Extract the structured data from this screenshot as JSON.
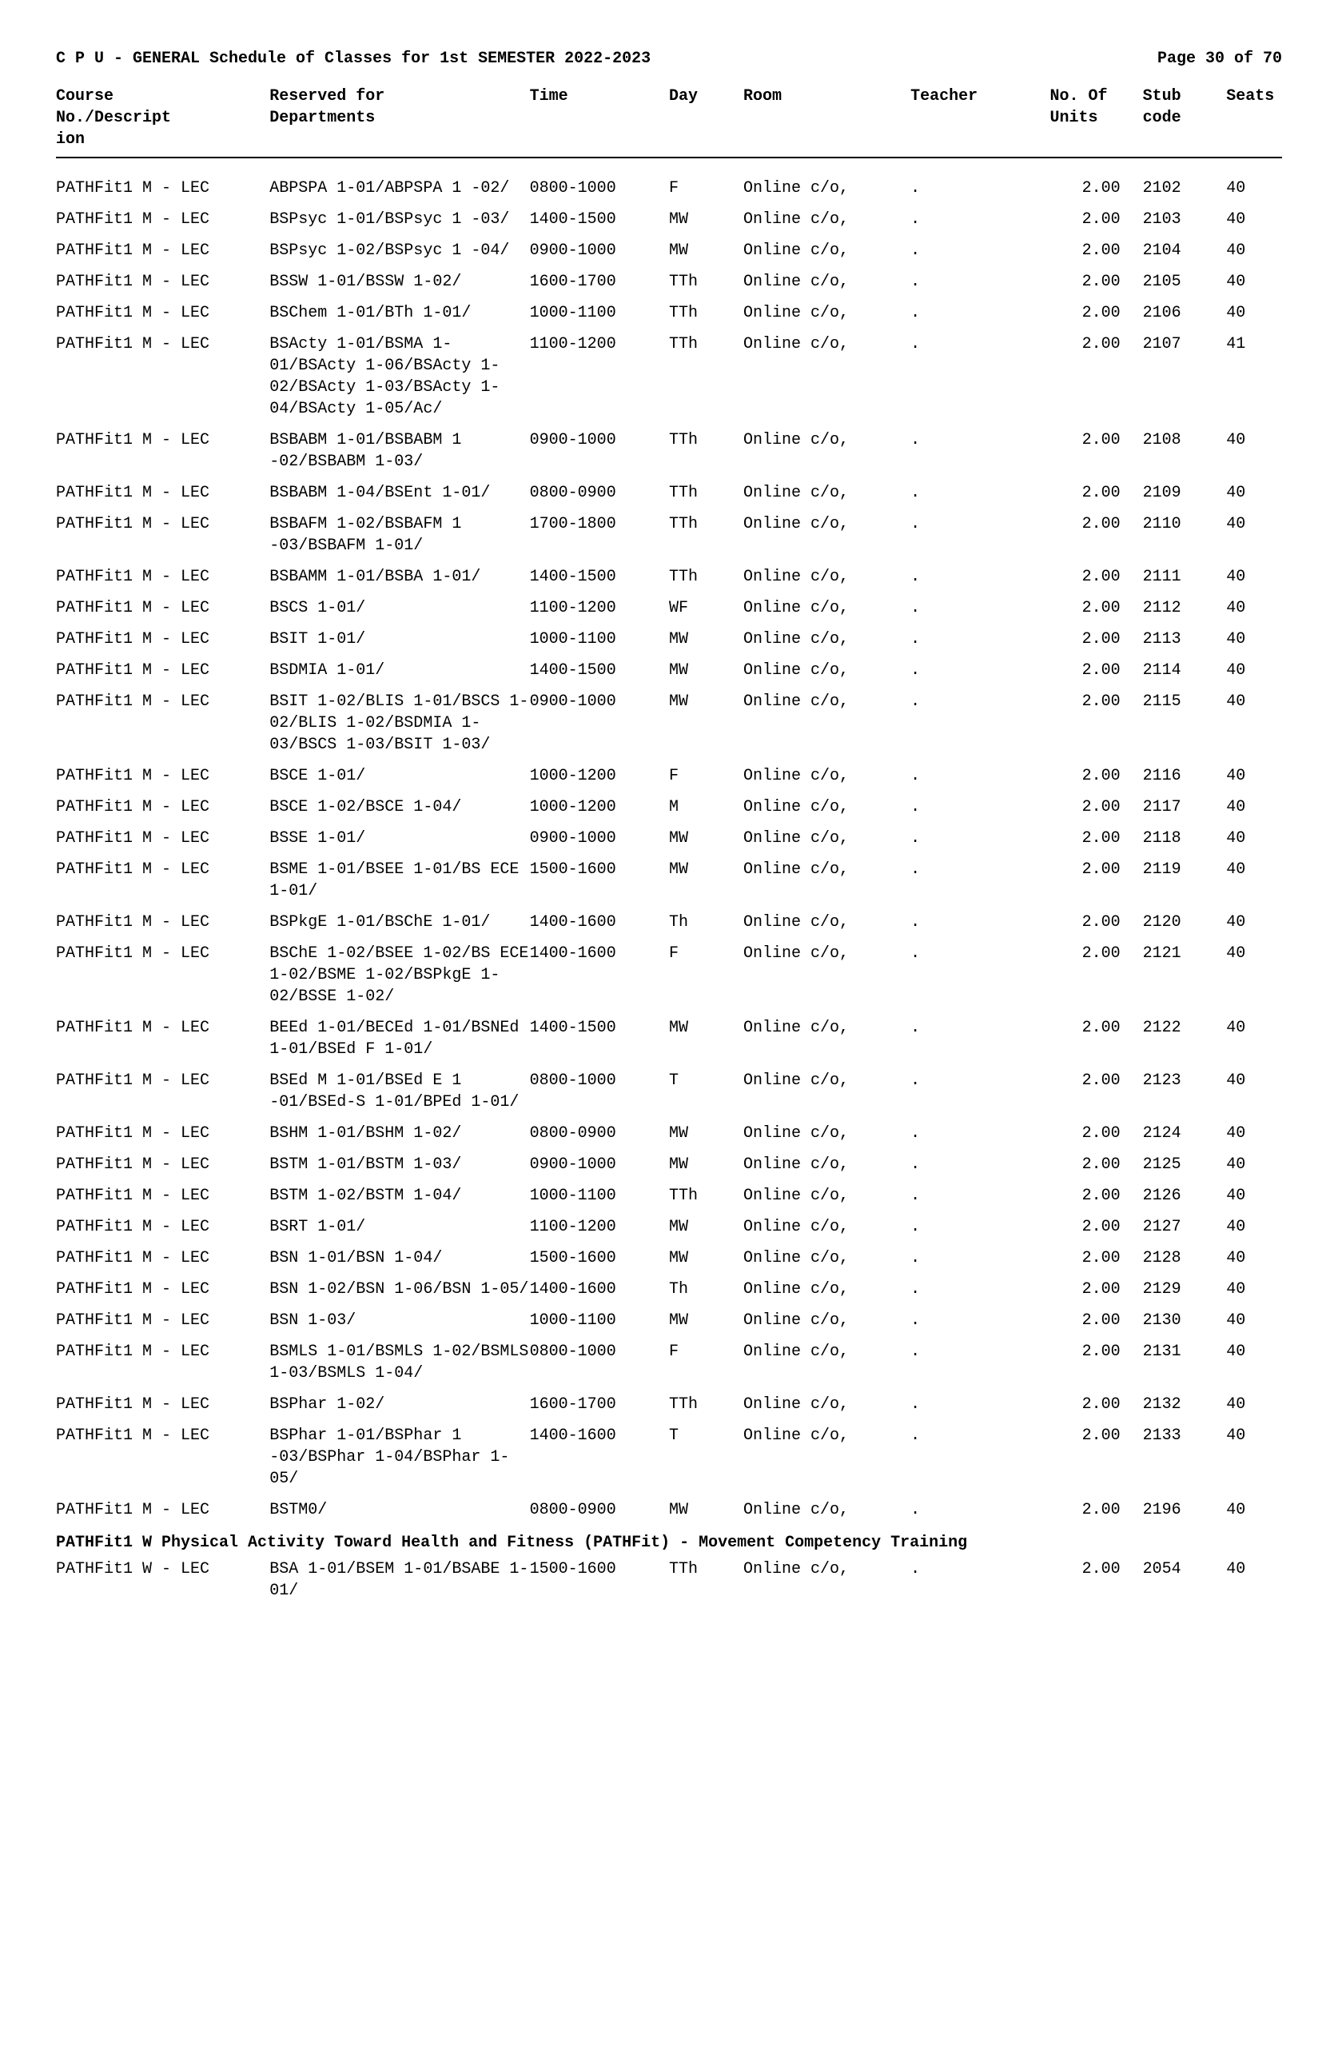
{
  "header": {
    "title": "C P U - GENERAL Schedule of Classes for 1st SEMESTER 2022-2023",
    "page": "Page 30 of 70"
  },
  "columns": {
    "course": "Course No./Descript ion",
    "reserved": "Reserved for Departments",
    "time": "Time",
    "day": "Day",
    "room": "Room",
    "teacher": "Teacher",
    "units": "No. Of Units",
    "stub": "Stub code",
    "seats": "Seats"
  },
  "rows": [
    {
      "course": "PATHFit1 M - LEC",
      "reserved": "ABPSPA 1-01/ABPSPA 1 -02/",
      "time": "0800-1000",
      "day": "F",
      "room": "Online c/o,",
      "teacher": ".",
      "units": "2.00",
      "stub": "2102",
      "seats": "40"
    },
    {
      "course": "PATHFit1 M - LEC",
      "reserved": "BSPsyc 1-01/BSPsyc 1 -03/",
      "time": "1400-1500",
      "day": "MW",
      "room": "Online c/o,",
      "teacher": ".",
      "units": "2.00",
      "stub": "2103",
      "seats": "40"
    },
    {
      "course": "PATHFit1 M - LEC",
      "reserved": "BSPsyc 1-02/BSPsyc 1 -04/",
      "time": "0900-1000",
      "day": "MW",
      "room": "Online c/o,",
      "teacher": ".",
      "units": "2.00",
      "stub": "2104",
      "seats": "40"
    },
    {
      "course": "PATHFit1 M - LEC",
      "reserved": "BSSW 1-01/BSSW 1-02/",
      "time": "1600-1700",
      "day": "TTh",
      "room": "Online c/o,",
      "teacher": ".",
      "units": "2.00",
      "stub": "2105",
      "seats": "40"
    },
    {
      "course": "PATHFit1 M - LEC",
      "reserved": "BSChem 1-01/BTh 1-01/",
      "time": "1000-1100",
      "day": "TTh",
      "room": "Online c/o,",
      "teacher": ".",
      "units": "2.00",
      "stub": "2106",
      "seats": "40"
    },
    {
      "course": "PATHFit1 M - LEC",
      "reserved": "BSActy 1-01/BSMA 1-01/BSActy 1-06/BSActy 1-02/BSActy 1-03/BSActy 1-04/BSActy 1-05/Ac/",
      "time": "1100-1200",
      "day": "TTh",
      "room": "Online c/o,",
      "teacher": ".",
      "units": "2.00",
      "stub": "2107",
      "seats": "41"
    },
    {
      "course": "PATHFit1 M - LEC",
      "reserved": "BSBABM 1-01/BSBABM 1 -02/BSBABM 1-03/",
      "time": "0900-1000",
      "day": "TTh",
      "room": "Online c/o,",
      "teacher": ".",
      "units": "2.00",
      "stub": "2108",
      "seats": "40"
    },
    {
      "course": "PATHFit1 M - LEC",
      "reserved": "BSBABM 1-04/BSEnt 1-01/",
      "time": "0800-0900",
      "day": "TTh",
      "room": "Online c/o,",
      "teacher": ".",
      "units": "2.00",
      "stub": "2109",
      "seats": "40"
    },
    {
      "course": "PATHFit1 M - LEC",
      "reserved": "BSBAFM 1-02/BSBAFM 1 -03/BSBAFM 1-01/",
      "time": "1700-1800",
      "day": "TTh",
      "room": "Online c/o,",
      "teacher": ".",
      "units": "2.00",
      "stub": "2110",
      "seats": "40"
    },
    {
      "course": "PATHFit1 M - LEC",
      "reserved": "BSBAMM 1-01/BSBA 1-01/",
      "time": "1400-1500",
      "day": "TTh",
      "room": "Online c/o,",
      "teacher": ".",
      "units": "2.00",
      "stub": "2111",
      "seats": "40"
    },
    {
      "course": "PATHFit1 M - LEC",
      "reserved": "BSCS 1-01/",
      "time": "1100-1200",
      "day": "WF",
      "room": "Online c/o,",
      "teacher": ".",
      "units": "2.00",
      "stub": "2112",
      "seats": "40"
    },
    {
      "course": "PATHFit1 M - LEC",
      "reserved": "BSIT 1-01/",
      "time": "1000-1100",
      "day": "MW",
      "room": "Online c/o,",
      "teacher": ".",
      "units": "2.00",
      "stub": "2113",
      "seats": "40"
    },
    {
      "course": "PATHFit1 M - LEC",
      "reserved": "BSDMIA 1-01/",
      "time": "1400-1500",
      "day": "MW",
      "room": "Online c/o,",
      "teacher": ".",
      "units": "2.00",
      "stub": "2114",
      "seats": "40"
    },
    {
      "course": "PATHFit1 M - LEC",
      "reserved": "BSIT 1-02/BLIS 1-01/BSCS 1-02/BLIS 1-02/BSDMIA 1-03/BSCS 1-03/BSIT 1-03/",
      "time": "0900-1000",
      "day": "MW",
      "room": "Online c/o,",
      "teacher": ".",
      "units": "2.00",
      "stub": "2115",
      "seats": "40"
    },
    {
      "course": "PATHFit1 M - LEC",
      "reserved": "BSCE 1-01/",
      "time": "1000-1200",
      "day": "F",
      "room": "Online c/o,",
      "teacher": ".",
      "units": "2.00",
      "stub": "2116",
      "seats": "40"
    },
    {
      "course": "PATHFit1 M - LEC",
      "reserved": "BSCE 1-02/BSCE 1-04/",
      "time": "1000-1200",
      "day": "M",
      "room": "Online c/o,",
      "teacher": ".",
      "units": "2.00",
      "stub": "2117",
      "seats": "40"
    },
    {
      "course": "PATHFit1 M - LEC",
      "reserved": "BSSE 1-01/",
      "time": "0900-1000",
      "day": "MW",
      "room": "Online c/o,",
      "teacher": ".",
      "units": "2.00",
      "stub": "2118",
      "seats": "40"
    },
    {
      "course": "PATHFit1 M - LEC",
      "reserved": "BSME 1-01/BSEE 1-01/BS ECE 1-01/",
      "time": "1500-1600",
      "day": "MW",
      "room": "Online c/o,",
      "teacher": ".",
      "units": "2.00",
      "stub": "2119",
      "seats": "40"
    },
    {
      "course": "PATHFit1 M - LEC",
      "reserved": "BSPkgE 1-01/BSChE 1-01/",
      "time": "1400-1600",
      "day": "Th",
      "room": "Online c/o,",
      "teacher": ".",
      "units": "2.00",
      "stub": "2120",
      "seats": "40"
    },
    {
      "course": "PATHFit1 M - LEC",
      "reserved": "BSChE 1-02/BSEE 1-02/BS ECE 1-02/BSME 1-02/BSPkgE 1-02/BSSE 1-02/",
      "time": "1400-1600",
      "day": "F",
      "room": "Online c/o,",
      "teacher": ".",
      "units": "2.00",
      "stub": "2121",
      "seats": "40"
    },
    {
      "course": "PATHFit1 M - LEC",
      "reserved": "BEEd 1-01/BECEd 1-01/BSNEd 1-01/BSEd F 1-01/",
      "time": "1400-1500",
      "day": "MW",
      "room": "Online c/o,",
      "teacher": ".",
      "units": "2.00",
      "stub": "2122",
      "seats": "40"
    },
    {
      "course": "PATHFit1 M - LEC",
      "reserved": "BSEd M 1-01/BSEd E 1 -01/BSEd-S 1-01/BPEd 1-01/",
      "time": "0800-1000",
      "day": "T",
      "room": "Online c/o,",
      "teacher": ".",
      "units": "2.00",
      "stub": "2123",
      "seats": "40"
    },
    {
      "course": "PATHFit1 M - LEC",
      "reserved": "BSHM 1-01/BSHM 1-02/",
      "time": "0800-0900",
      "day": "MW",
      "room": "Online c/o,",
      "teacher": ".",
      "units": "2.00",
      "stub": "2124",
      "seats": "40"
    },
    {
      "course": "PATHFit1 M - LEC",
      "reserved": "BSTM 1-01/BSTM 1-03/",
      "time": "0900-1000",
      "day": "MW",
      "room": "Online c/o,",
      "teacher": ".",
      "units": "2.00",
      "stub": "2125",
      "seats": "40"
    },
    {
      "course": "PATHFit1 M - LEC",
      "reserved": "BSTM 1-02/BSTM 1-04/",
      "time": "1000-1100",
      "day": "TTh",
      "room": "Online c/o,",
      "teacher": ".",
      "units": "2.00",
      "stub": "2126",
      "seats": "40"
    },
    {
      "course": "PATHFit1 M - LEC",
      "reserved": "BSRT 1-01/",
      "time": "1100-1200",
      "day": "MW",
      "room": "Online c/o,",
      "teacher": ".",
      "units": "2.00",
      "stub": "2127",
      "seats": "40"
    },
    {
      "course": "PATHFit1 M - LEC",
      "reserved": "BSN 1-01/BSN 1-04/",
      "time": "1500-1600",
      "day": "MW",
      "room": "Online c/o,",
      "teacher": ".",
      "units": "2.00",
      "stub": "2128",
      "seats": "40"
    },
    {
      "course": "PATHFit1 M - LEC",
      "reserved": "BSN 1-02/BSN 1-06/BSN 1-05/",
      "time": "1400-1600",
      "day": "Th",
      "room": "Online c/o,",
      "teacher": ".",
      "units": "2.00",
      "stub": "2129",
      "seats": "40"
    },
    {
      "course": "PATHFit1 M - LEC",
      "reserved": "BSN 1-03/",
      "time": "1000-1100",
      "day": "MW",
      "room": "Online c/o,",
      "teacher": ".",
      "units": "2.00",
      "stub": "2130",
      "seats": "40"
    },
    {
      "course": "PATHFit1 M - LEC",
      "reserved": "BSMLS 1-01/BSMLS 1-02/BSMLS 1-03/BSMLS 1-04/",
      "time": "0800-1000",
      "day": "F",
      "room": "Online c/o,",
      "teacher": ".",
      "units": "2.00",
      "stub": "2131",
      "seats": "40"
    },
    {
      "course": "PATHFit1 M - LEC",
      "reserved": "BSPhar 1-02/",
      "time": "1600-1700",
      "day": "TTh",
      "room": "Online c/o,",
      "teacher": ".",
      "units": "2.00",
      "stub": "2132",
      "seats": "40"
    },
    {
      "course": "PATHFit1 M - LEC",
      "reserved": "BSPhar 1-01/BSPhar 1 -03/BSPhar 1-04/BSPhar 1-05/",
      "time": "1400-1600",
      "day": "T",
      "room": "Online c/o,",
      "teacher": ".",
      "units": "2.00",
      "stub": "2133",
      "seats": "40"
    },
    {
      "course": "PATHFit1 M - LEC",
      "reserved": "BSTM0/",
      "time": "0800-0900",
      "day": "MW",
      "room": "Online c/o,",
      "teacher": ".",
      "units": "2.00",
      "stub": "2196",
      "seats": "40"
    }
  ],
  "section2": {
    "title": "PATHFit1 W Physical Activity Toward Health and Fitness (PATHFit) - Movement Competency Training",
    "rows": [
      {
        "course": "PATHFit1 W - LEC",
        "reserved": "BSA 1-01/BSEM 1-01/BSABE 1-01/",
        "time": "1500-1600",
        "day": "TTh",
        "room": "Online c/o,",
        "teacher": ".",
        "units": "2.00",
        "stub": "2054",
        "seats": "40"
      }
    ]
  }
}
